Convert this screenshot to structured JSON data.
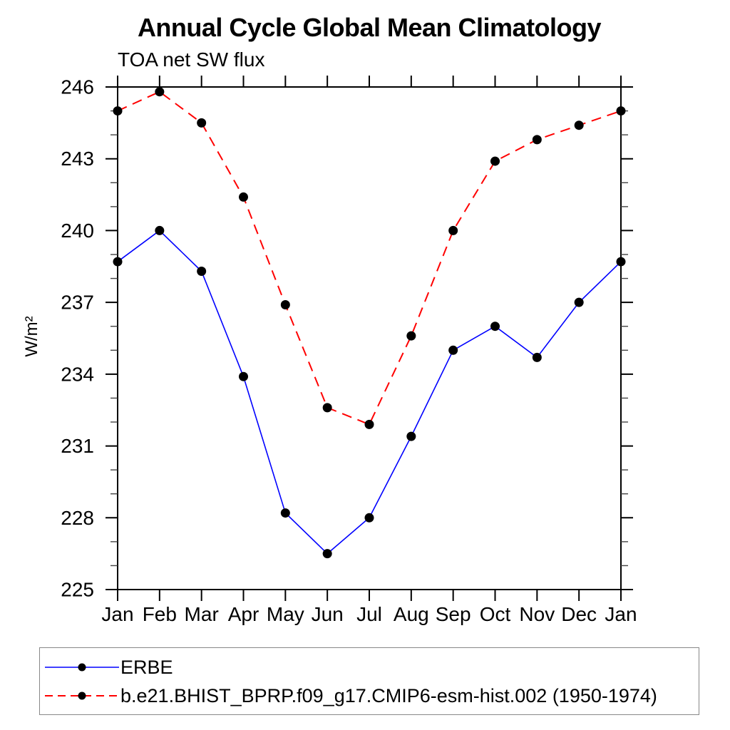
{
  "page": {
    "background": "#ffffff"
  },
  "chart_data": {
    "type": "line",
    "title": "Annual Cycle Global Mean Climatology",
    "subtitle": "TOA net SW flux",
    "ylabel": "W/m²",
    "xlabel": "",
    "x_categories": [
      "Jan",
      "Feb",
      "Mar",
      "Apr",
      "May",
      "Jun",
      "Jul",
      "Aug",
      "Sep",
      "Oct",
      "Nov",
      "Dec",
      "Jan"
    ],
    "ylim": [
      225,
      246
    ],
    "ytick_major_step": 3,
    "ytick_minor_step": 1,
    "ytick_labels": [
      "225",
      "228",
      "231",
      "234",
      "237",
      "240",
      "243",
      "246"
    ],
    "grid": "off",
    "legend_position": "bottom",
    "axis_color": "#000000",
    "series": [
      {
        "name": "ERBE",
        "line_color": "#0000ff",
        "line_style": "solid",
        "marker": "circle",
        "marker_color": "#000000",
        "values": [
          238.7,
          240.0,
          238.3,
          233.9,
          228.2,
          226.5,
          228.0,
          231.4,
          235.0,
          236.0,
          234.7,
          237.0,
          238.7
        ]
      },
      {
        "name": "b.e21.BHIST_BPRP.f09_g17.CMIP6-esm-hist.002 (1950-1974)",
        "line_color": "#ff0000",
        "line_style": "dashed",
        "marker": "circle",
        "marker_color": "#000000",
        "values": [
          245.0,
          245.8,
          244.5,
          241.4,
          236.9,
          232.6,
          231.9,
          235.6,
          240.0,
          242.9,
          243.8,
          244.4,
          245.0
        ]
      }
    ]
  }
}
